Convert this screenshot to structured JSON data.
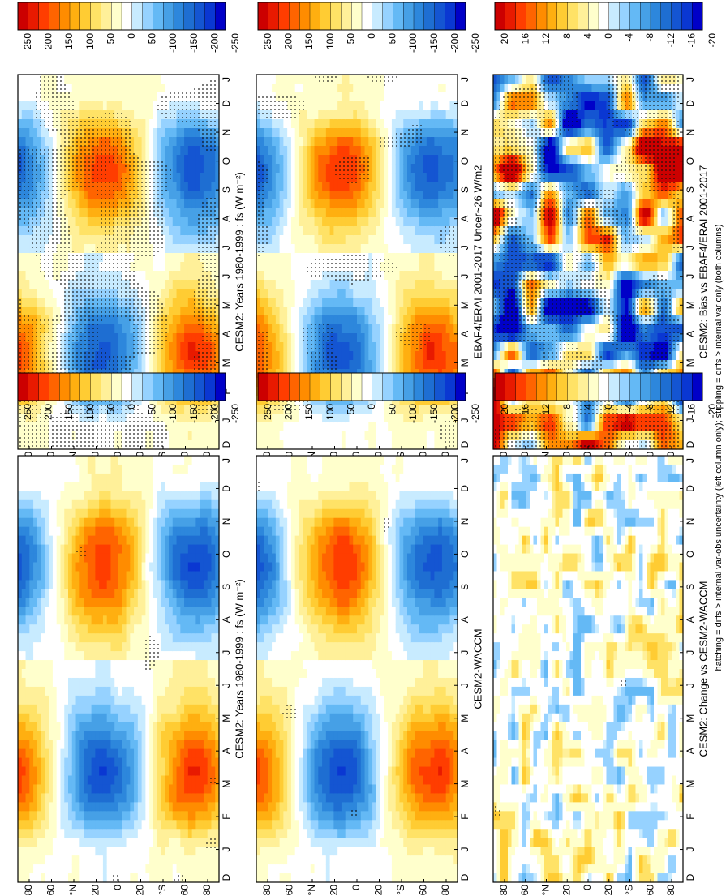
{
  "figure": {
    "footnote": "hatching = diffs > internal var-obs uncertainty (left column only); stippling = diffs > internal var only (both columns)",
    "lat_label_n": "°N",
    "lat_label_s": "°S"
  },
  "chart_data": [
    {
      "type": "heatmap",
      "title": "CESM2: Years 1980-1999 : fs (W m⁻²)",
      "x_ticks": [
        "D",
        "J",
        "F",
        "M",
        "A",
        "M",
        "J",
        "J",
        "A",
        "S",
        "O",
        "N",
        "D",
        "J"
      ],
      "y_ticks": [
        "80",
        "60",
        "°N",
        "20",
        "0",
        "20",
        "°S",
        "60",
        "80"
      ],
      "colorbar_ticks": [
        "250",
        "200",
        "150",
        "100",
        "50",
        "0",
        "-50",
        "-100",
        "-150",
        "-200",
        "-250"
      ],
      "range": [
        -260,
        260
      ],
      "field": "seasonal",
      "stipple": "heavy"
    },
    {
      "type": "heatmap",
      "title": "CESM2: Years 1980-1999 : fs (W m⁻²)",
      "x_ticks": [
        "D",
        "J",
        "F",
        "M",
        "A",
        "M",
        "J",
        "J",
        "A",
        "S",
        "O",
        "N",
        "D",
        "J"
      ],
      "y_ticks": [
        "80",
        "60",
        "°N",
        "20",
        "0",
        "20",
        "°S",
        "60",
        "80"
      ],
      "colorbar_ticks": [
        "250",
        "200",
        "150",
        "100",
        "50",
        "0",
        "-50",
        "-100",
        "-150",
        "-200",
        "-250"
      ],
      "range": [
        -260,
        260
      ],
      "field": "seasonal",
      "stipple": "light"
    },
    {
      "type": "heatmap",
      "title": "EBAF4/ERAI 2001-2017 Uncer~26 W/m2",
      "x_ticks": [
        "D",
        "J",
        "F",
        "M",
        "A",
        "M",
        "J",
        "J",
        "A",
        "S",
        "O",
        "N",
        "D",
        "J"
      ],
      "y_ticks": [
        "80",
        "60",
        "°N",
        "20",
        "0",
        "20",
        "°S",
        "60",
        "80"
      ],
      "colorbar_ticks": [
        "250",
        "200",
        "150",
        "100",
        "50",
        "0",
        "-50",
        "-100",
        "-150",
        "-200",
        "-250"
      ],
      "range": [
        -260,
        260
      ],
      "field": "seasonal",
      "stipple": "medium"
    },
    {
      "type": "heatmap",
      "title": "CESM2-WACCM",
      "x_ticks": [
        "D",
        "J",
        "F",
        "M",
        "A",
        "M",
        "J",
        "J",
        "A",
        "S",
        "O",
        "N",
        "D",
        "J"
      ],
      "y_ticks": [
        "80",
        "60",
        "°N",
        "20",
        "0",
        "20",
        "°S",
        "60",
        "80"
      ],
      "colorbar_ticks": [
        "250",
        "200",
        "150",
        "100",
        "50",
        "0",
        "-50",
        "-100",
        "-150",
        "-200",
        "-250"
      ],
      "range": [
        -260,
        260
      ],
      "field": "seasonal",
      "stipple": "light"
    },
    {
      "type": "heatmap",
      "title": "CESM2: Bias vs EBAF4/ERAI 2001-2017",
      "x_ticks": [
        "D",
        "J",
        "F",
        "M",
        "A",
        "M",
        "J",
        "J",
        "A",
        "S",
        "O",
        "N",
        "D",
        "J"
      ],
      "y_ticks": [
        "80",
        "60",
        "°N",
        "20",
        "0",
        "20",
        "°S",
        "60",
        "80"
      ],
      "colorbar_ticks": [
        "20",
        "16",
        "12",
        "8",
        "4",
        "0",
        "-4",
        "-8",
        "-12",
        "-16",
        "-20"
      ],
      "range": [
        -22,
        22
      ],
      "field": "bias",
      "stipple": "heavy"
    },
    {
      "type": "heatmap",
      "title": "CESM2: Change vs CESM2-WACCM",
      "x_ticks": [
        "D",
        "J",
        "F",
        "M",
        "A",
        "M",
        "J",
        "J",
        "A",
        "S",
        "O",
        "N",
        "D",
        "J"
      ],
      "y_ticks": [
        "80",
        "60",
        "°N",
        "20",
        "0",
        "20",
        "°S",
        "60",
        "80"
      ],
      "colorbar_ticks": [
        "20",
        "16",
        "12",
        "8",
        "4",
        "0",
        "-4",
        "-8",
        "-12",
        "-16",
        "-20"
      ],
      "range": [
        -22,
        22
      ],
      "field": "change",
      "stipple": "sparse"
    }
  ]
}
